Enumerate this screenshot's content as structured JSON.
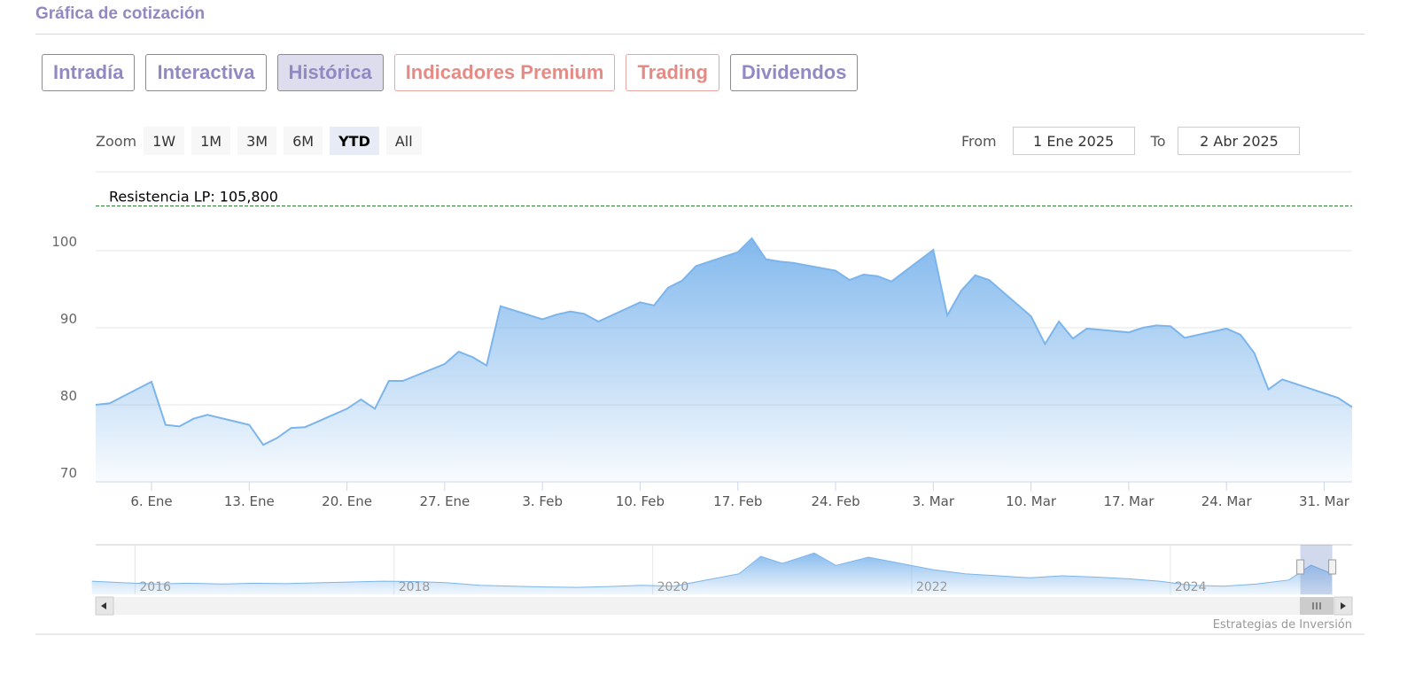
{
  "header": {
    "title": "Gráfica de cotización"
  },
  "tabs": [
    "Intradía",
    "Interactiva",
    "Histórica",
    "Indicadores Premium",
    "Trading",
    "Dividendos"
  ],
  "active_tab": 2,
  "toolbar": {
    "zoom_label": "Zoom",
    "zoom_buttons": [
      "1W",
      "1M",
      "3M",
      "6M",
      "YTD",
      "All"
    ],
    "active_zoom": 4,
    "from_label": "From",
    "from_value": "1 Ene 2025",
    "to_label": "To",
    "to_value": "2 Abr 2025"
  },
  "chart_data": {
    "type": "area",
    "color": "#7cb5ec",
    "x": [
      "2025-01-02",
      "2025-01-03",
      "2025-01-06",
      "2025-01-07",
      "2025-01-08",
      "2025-01-09",
      "2025-01-10",
      "2025-01-13",
      "2025-01-14",
      "2025-01-15",
      "2025-01-16",
      "2025-01-17",
      "2025-01-20",
      "2025-01-21",
      "2025-01-22",
      "2025-01-23",
      "2025-01-24",
      "2025-01-27",
      "2025-01-28",
      "2025-01-29",
      "2025-01-30",
      "2025-01-31",
      "2025-02-03",
      "2025-02-04",
      "2025-02-05",
      "2025-02-06",
      "2025-02-07",
      "2025-02-10",
      "2025-02-11",
      "2025-02-12",
      "2025-02-13",
      "2025-02-14",
      "2025-02-17",
      "2025-02-18",
      "2025-02-19",
      "2025-02-20",
      "2025-02-21",
      "2025-02-24",
      "2025-02-25",
      "2025-02-26",
      "2025-02-27",
      "2025-02-28",
      "2025-03-03",
      "2025-03-04",
      "2025-03-05",
      "2025-03-06",
      "2025-03-07",
      "2025-03-10",
      "2025-03-11",
      "2025-03-12",
      "2025-03-13",
      "2025-03-14",
      "2025-03-17",
      "2025-03-18",
      "2025-03-19",
      "2025-03-20",
      "2025-03-21",
      "2025-03-24",
      "2025-03-25",
      "2025-03-26",
      "2025-03-27",
      "2025-03-28",
      "2025-03-31",
      "2025-04-01",
      "2025-04-02"
    ],
    "values": [
      80.0,
      80.2,
      83.0,
      77.4,
      77.2,
      78.2,
      78.7,
      77.4,
      74.8,
      75.7,
      77.0,
      77.1,
      79.5,
      80.7,
      79.5,
      83.1,
      83.1,
      85.3,
      86.9,
      86.2,
      85.1,
      92.8,
      91.1,
      91.7,
      92.1,
      91.8,
      90.8,
      93.3,
      92.9,
      95.2,
      96.1,
      98.0,
      99.8,
      101.6,
      98.9,
      98.6,
      98.4,
      97.4,
      96.2,
      96.9,
      96.7,
      96.0,
      100.1,
      91.6,
      94.8,
      96.8,
      96.2,
      91.5,
      87.9,
      90.8,
      88.6,
      89.9,
      89.4,
      90.0,
      90.3,
      90.2,
      88.7,
      89.9,
      89.1,
      86.7,
      82.0,
      83.3,
      81.5,
      80.9,
      79.7
    ],
    "xlim": [
      "2025-01-02",
      "2025-04-02"
    ],
    "xticks": [
      {
        "value": "2025-01-06",
        "label": "6. Ene"
      },
      {
        "value": "2025-01-13",
        "label": "13. Ene"
      },
      {
        "value": "2025-01-20",
        "label": "20. Ene"
      },
      {
        "value": "2025-01-27",
        "label": "27. Ene"
      },
      {
        "value": "2025-02-03",
        "label": "3. Feb"
      },
      {
        "value": "2025-02-10",
        "label": "10. Feb"
      },
      {
        "value": "2025-02-17",
        "label": "17. Feb"
      },
      {
        "value": "2025-02-24",
        "label": "24. Feb"
      },
      {
        "value": "2025-03-03",
        "label": "3. Mar"
      },
      {
        "value": "2025-03-10",
        "label": "10. Mar"
      },
      {
        "value": "2025-03-17",
        "label": "17. Mar"
      },
      {
        "value": "2025-03-24",
        "label": "24. Mar"
      },
      {
        "value": "2025-03-31",
        "label": "31. Mar"
      }
    ],
    "ylim": [
      70,
      110
    ],
    "yticks": [
      70,
      80,
      90,
      100
    ],
    "grid": true,
    "plot_lines": [
      {
        "value": 105.8,
        "label": "Resistencia LP: 105,800",
        "color": "#2e7d32"
      }
    ],
    "navigator": {
      "x": [
        "2015-09",
        "2015-12",
        "2016-03",
        "2016-06",
        "2016-09",
        "2016-12",
        "2017-03",
        "2017-06",
        "2017-09",
        "2017-12",
        "2018-03",
        "2018-06",
        "2018-09",
        "2018-12",
        "2019-03",
        "2019-06",
        "2019-09",
        "2019-12",
        "2020-03",
        "2020-06",
        "2020-09",
        "2020-11",
        "2021-01",
        "2021-04",
        "2021-06",
        "2021-09",
        "2021-12",
        "2022-03",
        "2022-06",
        "2022-09",
        "2022-12",
        "2023-03",
        "2023-06",
        "2023-09",
        "2023-12",
        "2024-03",
        "2024-06",
        "2024-09",
        "2024-12",
        "2025-02",
        "2025-04"
      ],
      "values": [
        62,
        58,
        55,
        57,
        55,
        57,
        56,
        58,
        60,
        62,
        61,
        58,
        52,
        50,
        48,
        47,
        49,
        52,
        50,
        65,
        80,
        122,
        105,
        130,
        100,
        120,
        105,
        90,
        80,
        75,
        70,
        75,
        72,
        68,
        62,
        52,
        50,
        55,
        65,
        101,
        80
      ],
      "xlim": [
        "2015-09-12",
        "2025-05-28"
      ],
      "ylim": [
        30,
        150
      ],
      "xticks": [
        {
          "value": "2016-01-01",
          "label": "2016"
        },
        {
          "value": "2018-01-01",
          "label": "2018"
        },
        {
          "value": "2020-01-01",
          "label": "2020"
        },
        {
          "value": "2022-01-01",
          "label": "2022"
        },
        {
          "value": "2024-01-01",
          "label": "2024"
        }
      ],
      "selection": [
        "2025-01-02",
        "2025-04-02"
      ]
    }
  },
  "credits": "Estrategias de Inversión"
}
